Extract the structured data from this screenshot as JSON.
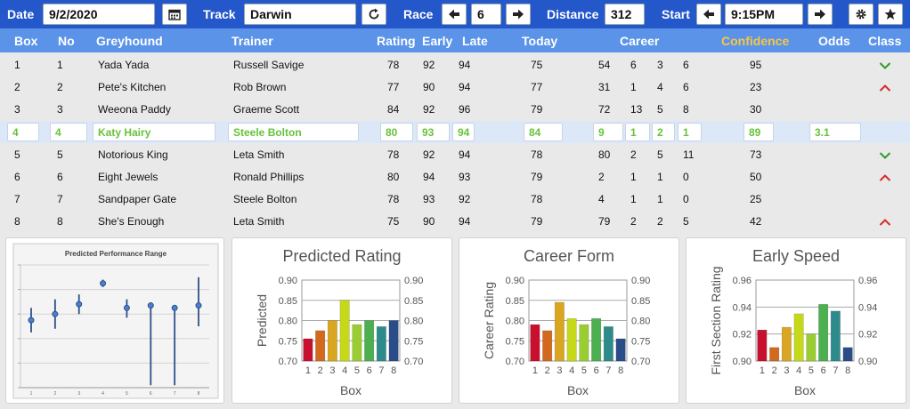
{
  "toolbar": {
    "date_label": "Date",
    "date_value": "9/2/2020",
    "track_label": "Track",
    "track_value": "Darwin",
    "race_label": "Race",
    "race_value": "6",
    "distance_label": "Distance",
    "distance_value": "312",
    "start_label": "Start",
    "start_value": "9:15PM",
    "icons": [
      "calendar-icon",
      "refresh-icon",
      "arrow-left-icon",
      "arrow-right-icon",
      "gear-icon",
      "star-icon"
    ]
  },
  "columns": {
    "box": "Box",
    "no": "No",
    "greyhound": "Greyhound",
    "trainer": "Trainer",
    "rating": "Rating",
    "early": "Early",
    "late": "Late",
    "today": "Today",
    "career": "Career",
    "confidence": "Confidence",
    "odds": "Odds",
    "class": "Class"
  },
  "colors": {
    "toolbar": "#2457c9",
    "header": "#5b93e8",
    "confidence_header": "#f6c744",
    "selected_text": "#67c23a",
    "up": "#2e9a2e",
    "down": "#d62a2a"
  },
  "rows": [
    {
      "box": "1",
      "no": "1",
      "greyhound": "Yada Yada",
      "trainer": "Russell Savige",
      "rating": "78",
      "early": "92",
      "late": "94",
      "today": "75",
      "c1": "54",
      "c2": "6",
      "c3": "3",
      "c4": "6",
      "confidence": "95",
      "odds": "",
      "class": "up"
    },
    {
      "box": "2",
      "no": "2",
      "greyhound": "Pete's Kitchen",
      "trainer": "Rob Brown",
      "rating": "77",
      "early": "90",
      "late": "94",
      "today": "77",
      "c1": "31",
      "c2": "1",
      "c3": "4",
      "c4": "6",
      "confidence": "23",
      "odds": "",
      "class": "down"
    },
    {
      "box": "3",
      "no": "3",
      "greyhound": "Weeona Paddy",
      "trainer": "Graeme Scott",
      "rating": "84",
      "early": "92",
      "late": "96",
      "today": "79",
      "c1": "72",
      "c2": "13",
      "c3": "5",
      "c4": "8",
      "confidence": "30",
      "odds": "",
      "class": ""
    },
    {
      "box": "4",
      "no": "4",
      "greyhound": "Katy Hairy",
      "trainer": "Steele Bolton",
      "rating": "80",
      "early": "93",
      "late": "94",
      "today": "84",
      "c1": "9",
      "c2": "1",
      "c3": "2",
      "c4": "1",
      "confidence": "89",
      "odds": "3.1",
      "class": ""
    },
    {
      "box": "5",
      "no": "5",
      "greyhound": "Notorious King",
      "trainer": "Leta Smith",
      "rating": "78",
      "early": "92",
      "late": "94",
      "today": "78",
      "c1": "80",
      "c2": "2",
      "c3": "5",
      "c4": "11",
      "confidence": "73",
      "odds": "",
      "class": "up"
    },
    {
      "box": "6",
      "no": "6",
      "greyhound": "Eight Jewels",
      "trainer": "Ronald Phillips",
      "rating": "80",
      "early": "94",
      "late": "93",
      "today": "79",
      "c1": "2",
      "c2": "1",
      "c3": "1",
      "c4": "0",
      "confidence": "50",
      "odds": "",
      "class": "down"
    },
    {
      "box": "7",
      "no": "7",
      "greyhound": "Sandpaper Gate",
      "trainer": "Steele Bolton",
      "rating": "78",
      "early": "93",
      "late": "92",
      "today": "78",
      "c1": "4",
      "c2": "1",
      "c3": "1",
      "c4": "0",
      "confidence": "25",
      "odds": "",
      "class": ""
    },
    {
      "box": "8",
      "no": "8",
      "greyhound": "She's Enough",
      "trainer": "Leta Smith",
      "rating": "75",
      "early": "90",
      "late": "94",
      "today": "79",
      "c1": "79",
      "c2": "2",
      "c3": "2",
      "c4": "5",
      "confidence": "42",
      "odds": "",
      "class": "down"
    }
  ],
  "selected_row": 3,
  "chart_data": [
    {
      "type": "scatter",
      "title": "Predicted Performance Range",
      "xlabel": "",
      "ylabel": "",
      "x": [
        1,
        2,
        3,
        4,
        5,
        6,
        7,
        8
      ],
      "values": [
        0.55,
        0.6,
        0.68,
        0.85,
        0.65,
        0.67,
        0.65,
        0.67
      ],
      "low": [
        0.45,
        0.48,
        0.6,
        0.82,
        0.57,
        0.02,
        0.02,
        0.5
      ],
      "high": [
        0.65,
        0.72,
        0.76,
        0.88,
        0.72,
        0.67,
        0.65,
        0.9
      ],
      "ylim": [
        0,
        1
      ],
      "grid": true
    },
    {
      "type": "bar",
      "title": "Predicted Rating",
      "xlabel": "Box",
      "ylabel": "Predicted",
      "categories": [
        "1",
        "2",
        "3",
        "4",
        "5",
        "6",
        "7",
        "8"
      ],
      "values": [
        0.755,
        0.775,
        0.8,
        0.85,
        0.79,
        0.8,
        0.785,
        0.8
      ],
      "ylim": [
        0.7,
        0.9
      ],
      "ticks": [
        "0.70",
        "0.75",
        "0.80",
        "0.85",
        "0.90"
      ],
      "colors": [
        "#c8102e",
        "#d2691e",
        "#daa520",
        "#c5d91a",
        "#9acd32",
        "#4caf50",
        "#2e8b8b",
        "#2a4d8a"
      ]
    },
    {
      "type": "bar",
      "title": "Career Form",
      "xlabel": "Box",
      "ylabel": "Career Rating",
      "categories": [
        "1",
        "2",
        "3",
        "4",
        "5",
        "6",
        "7",
        "8"
      ],
      "values": [
        0.79,
        0.775,
        0.845,
        0.805,
        0.79,
        0.805,
        0.785,
        0.755
      ],
      "ylim": [
        0.7,
        0.9
      ],
      "ticks": [
        "0.70",
        "0.75",
        "0.80",
        "0.85",
        "0.90"
      ],
      "colors": [
        "#c8102e",
        "#d2691e",
        "#daa520",
        "#c5d91a",
        "#9acd32",
        "#4caf50",
        "#2e8b8b",
        "#2a4d8a"
      ]
    },
    {
      "type": "bar",
      "title": "Early Speed",
      "xlabel": "Box",
      "ylabel": "First Section Rating",
      "categories": [
        "1",
        "2",
        "3",
        "4",
        "5",
        "6",
        "7",
        "8"
      ],
      "values": [
        0.923,
        0.91,
        0.925,
        0.935,
        0.92,
        0.942,
        0.937,
        0.91
      ],
      "ylim": [
        0.9,
        0.96
      ],
      "ticks": [
        "0.90",
        "0.92",
        "0.94",
        "0.96"
      ],
      "colors": [
        "#c8102e",
        "#d2691e",
        "#daa520",
        "#c5d91a",
        "#9acd32",
        "#4caf50",
        "#2e8b8b",
        "#2a4d8a"
      ]
    }
  ]
}
